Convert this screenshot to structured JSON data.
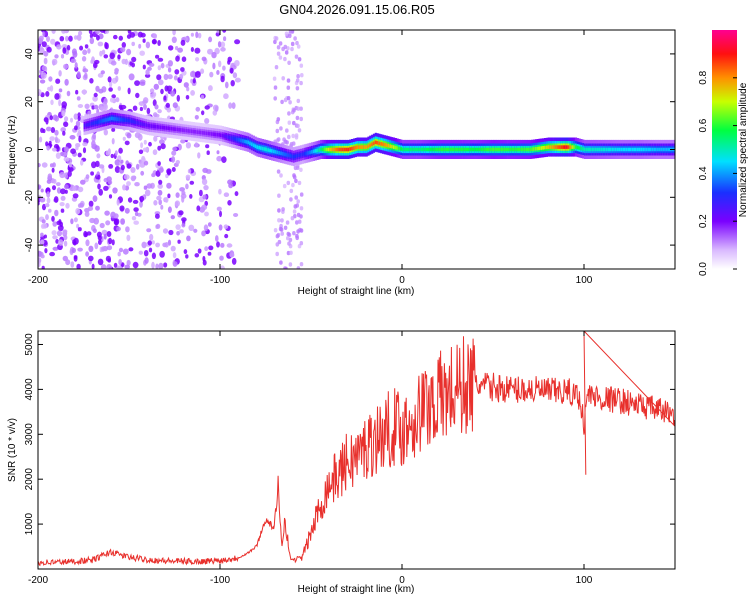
{
  "title": "GN04.2026.091.15.06.R05",
  "colors": {
    "signal": "#e8302c",
    "background": "#ffffff"
  },
  "chart_data": [
    {
      "type": "heatmap",
      "title": "GN04.2026.091.15.06.R05",
      "xlabel": "Height of straight line (km)",
      "ylabel": "Frequency (Hz)",
      "xlim": [
        -200,
        150
      ],
      "ylim": [
        -50,
        50
      ],
      "xticks": [
        -200,
        -100,
        0,
        100
      ],
      "yticks": [
        -40,
        -20,
        0,
        20,
        40
      ],
      "colorbar": {
        "label": "Normalized spectral amplitude",
        "range": [
          0,
          1
        ],
        "ticks": [
          0.0,
          0.2,
          0.4,
          0.6,
          0.8
        ],
        "tick_labels": [
          "0.0",
          "0.2",
          "0.4",
          "0.6",
          "0.8"
        ],
        "colormap": [
          "#ffffff",
          "#d9b8ff",
          "#7a00ff",
          "#1a30ff",
          "#00e0ff",
          "#00ff40",
          "#c8ff00",
          "#ff9000",
          "#ff1010",
          "#ff0090"
        ]
      },
      "ridge": {
        "x": [
          -175,
          -165,
          -160,
          -150,
          -140,
          -130,
          -120,
          -110,
          -100,
          -95,
          -90,
          -85,
          -80,
          -75,
          -70,
          -65,
          -60,
          -55,
          -50,
          -45,
          -40,
          -35,
          -30,
          -25,
          -20,
          -15,
          -10,
          -5,
          0,
          10,
          20,
          30,
          40,
          50,
          60,
          70,
          80,
          90,
          95,
          100,
          110,
          120,
          130,
          140,
          150
        ],
        "freq": [
          10,
          12,
          13,
          12,
          10,
          9,
          8,
          7,
          6,
          5,
          4,
          3,
          1,
          0,
          -1,
          -2,
          -3,
          -2,
          -1,
          0,
          0,
          0,
          0,
          1,
          1,
          3,
          2,
          1,
          0,
          0,
          0,
          0,
          0,
          0,
          0,
          0,
          1,
          1,
          1,
          0,
          0,
          0,
          0,
          0,
          0
        ],
        "amplitude": [
          0.25,
          0.35,
          0.38,
          0.3,
          0.22,
          0.2,
          0.18,
          0.18,
          0.2,
          0.28,
          0.35,
          0.42,
          0.45,
          0.48,
          0.42,
          0.36,
          0.32,
          0.3,
          0.4,
          0.55,
          0.75,
          0.85,
          0.88,
          0.8,
          0.78,
          0.85,
          0.8,
          0.7,
          0.55,
          0.55,
          0.6,
          0.6,
          0.58,
          0.62,
          0.6,
          0.62,
          0.75,
          0.92,
          0.6,
          0.5,
          0.48,
          0.45,
          0.45,
          0.42,
          0.42
        ]
      },
      "scatter_region": {
        "x_range": [
          -200,
          -90
        ],
        "secondary_x_range": [
          -70,
          -55
        ]
      }
    },
    {
      "type": "line",
      "xlabel": "Height of straight line (km)",
      "ylabel": "SNR (10 * v/v)",
      "xlim": [
        -200,
        150
      ],
      "ylim": [
        0,
        5300
      ],
      "xticks": [
        -200,
        -100,
        0,
        100
      ],
      "yticks": [
        1000,
        2000,
        3000,
        4000,
        5000
      ],
      "series": [
        {
          "name": "SNR",
          "x": [
            -200,
            -190,
            -180,
            -170,
            -160,
            -150,
            -140,
            -130,
            -120,
            -110,
            -100,
            -90,
            -85,
            -80,
            -75,
            -70,
            -68,
            -66,
            -64,
            -62,
            -60,
            -55,
            -50,
            -45,
            -40,
            -35,
            -30,
            -25,
            -20,
            -15,
            -10,
            -5,
            0,
            5,
            10,
            15,
            20,
            25,
            30,
            35,
            40,
            50,
            60,
            70,
            80,
            90,
            95,
            98,
            100,
            102,
            105,
            110,
            120,
            130,
            140,
            150
          ],
          "values": [
            150,
            150,
            170,
            200,
            380,
            260,
            210,
            180,
            170,
            170,
            190,
            250,
            350,
            500,
            1100,
            900,
            1700,
            600,
            1200,
            300,
            200,
            250,
            800,
            1400,
            1900,
            2100,
            2400,
            2500,
            2700,
            2900,
            3000,
            3200,
            3100,
            3300,
            3500,
            3700,
            3800,
            3900,
            4000,
            4100,
            4100,
            4050,
            4000,
            4000,
            3950,
            3950,
            3900,
            3800,
            3200,
            3900,
            3850,
            3800,
            3750,
            3650,
            3550,
            3450
          ]
        }
      ]
    }
  ]
}
